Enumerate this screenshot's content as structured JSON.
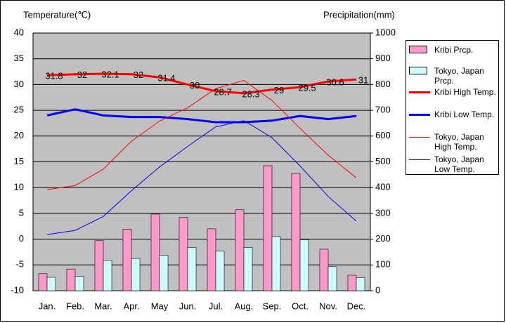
{
  "chart_data": {
    "type": "bar-line",
    "y_label": "Temperature(℃)",
    "y2_label": "Precipitation(mm)",
    "categories": [
      "Jan.",
      "Feb.",
      "Mar.",
      "Apr.",
      "May",
      "Jun.",
      "Jul.",
      "Aug.",
      "Sep.",
      "Oct.",
      "Nov.",
      "Dec."
    ],
    "ylim": [
      -10,
      40
    ],
    "yticks": [
      -10,
      -5,
      0,
      5,
      10,
      15,
      20,
      25,
      30,
      35,
      40
    ],
    "y2lim": [
      0,
      1000
    ],
    "y2ticks": [
      0,
      100,
      200,
      300,
      400,
      500,
      600,
      700,
      800,
      900,
      1000
    ],
    "grid": true,
    "legend": "right",
    "series": [
      {
        "name": "Kribi Prcp.",
        "type": "bar",
        "axis": "y2",
        "color": "#ff99cc",
        "values": [
          66,
          84,
          194,
          238,
          297,
          284,
          240,
          314,
          485,
          455,
          161,
          60
        ]
      },
      {
        "name": "Tokyo, Japan Prcp.",
        "type": "bar",
        "axis": "y2",
        "color": "#ccffff",
        "values": [
          52,
          56,
          118,
          125,
          138,
          168,
          154,
          168,
          210,
          198,
          93,
          51
        ]
      },
      {
        "name": "Kribi High Temp.",
        "type": "line",
        "color": "#ff0000",
        "data_labels": true,
        "values": [
          31.8,
          32,
          32.1,
          32,
          31.4,
          30,
          28.7,
          28.3,
          29,
          29.5,
          30.6,
          31
        ]
      },
      {
        "name": "Kribi Low Temp.",
        "type": "line",
        "color": "#0000ff",
        "values": [
          24,
          25.2,
          24,
          23.7,
          23.7,
          23.3,
          22.7,
          22.7,
          23,
          23.9,
          23.3,
          23.9
        ]
      },
      {
        "name": "Tokyo, Japan High Temp.",
        "type": "line",
        "color": "#ff0000",
        "values": [
          9.6,
          10.4,
          13.6,
          19,
          22.9,
          25.5,
          29.2,
          30.8,
          26.9,
          21.5,
          16.3,
          11.9
        ]
      },
      {
        "name": "Tokyo, Japan Low Temp.",
        "type": "line",
        "color": "#0000ff",
        "values": [
          0.9,
          1.7,
          4.4,
          9.4,
          14,
          18,
          21.8,
          23,
          19.7,
          14.2,
          8.3,
          3.5
        ]
      }
    ]
  }
}
